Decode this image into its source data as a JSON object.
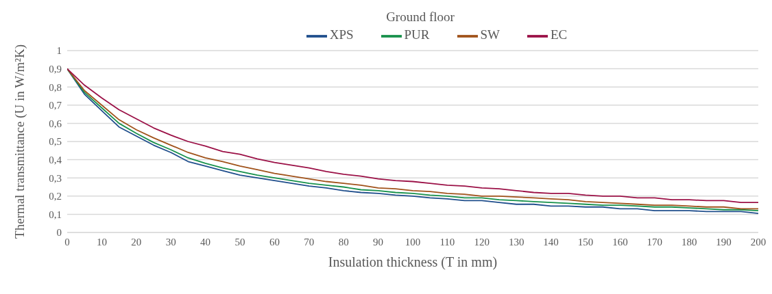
{
  "chart_data": {
    "type": "line",
    "title": "Ground floor",
    "xlabel": "Insulation thickness (T in mm)",
    "ylabel": "Thermal transmittance (U in W/m²K)",
    "x": [
      0,
      5,
      10,
      15,
      20,
      25,
      30,
      35,
      40,
      45,
      50,
      55,
      60,
      65,
      70,
      75,
      80,
      85,
      90,
      95,
      100,
      105,
      110,
      115,
      120,
      125,
      130,
      135,
      140,
      145,
      150,
      155,
      160,
      165,
      170,
      175,
      180,
      185,
      190,
      195,
      200
    ],
    "series": [
      {
        "name": "XPS",
        "color": "#1f4e8c",
        "values": [
          0.9,
          0.76,
          0.67,
          0.58,
          0.53,
          0.48,
          0.44,
          0.39,
          0.365,
          0.34,
          0.315,
          0.3,
          0.285,
          0.27,
          0.255,
          0.245,
          0.23,
          0.22,
          0.215,
          0.205,
          0.2,
          0.19,
          0.185,
          0.175,
          0.175,
          0.165,
          0.155,
          0.155,
          0.145,
          0.145,
          0.14,
          0.14,
          0.13,
          0.13,
          0.12,
          0.12,
          0.12,
          0.115,
          0.115,
          0.115,
          0.105
        ]
      },
      {
        "name": "PUR",
        "color": "#17914b",
        "values": [
          0.9,
          0.77,
          0.685,
          0.6,
          0.545,
          0.495,
          0.455,
          0.41,
          0.38,
          0.355,
          0.335,
          0.315,
          0.3,
          0.285,
          0.27,
          0.26,
          0.25,
          0.235,
          0.23,
          0.22,
          0.215,
          0.205,
          0.2,
          0.19,
          0.19,
          0.18,
          0.175,
          0.17,
          0.165,
          0.16,
          0.155,
          0.15,
          0.15,
          0.145,
          0.14,
          0.14,
          0.135,
          0.13,
          0.125,
          0.125,
          0.12
        ]
      },
      {
        "name": "SW",
        "color": "#a0521a",
        "values": [
          0.9,
          0.78,
          0.7,
          0.62,
          0.565,
          0.52,
          0.48,
          0.44,
          0.41,
          0.39,
          0.365,
          0.345,
          0.325,
          0.31,
          0.295,
          0.28,
          0.27,
          0.26,
          0.245,
          0.24,
          0.23,
          0.225,
          0.215,
          0.21,
          0.2,
          0.2,
          0.195,
          0.19,
          0.185,
          0.18,
          0.17,
          0.165,
          0.16,
          0.155,
          0.15,
          0.15,
          0.145,
          0.14,
          0.14,
          0.13,
          0.13
        ]
      },
      {
        "name": "EC",
        "color": "#9b1046",
        "values": [
          0.9,
          0.81,
          0.74,
          0.675,
          0.625,
          0.575,
          0.535,
          0.5,
          0.475,
          0.445,
          0.43,
          0.405,
          0.385,
          0.37,
          0.355,
          0.335,
          0.32,
          0.31,
          0.295,
          0.285,
          0.28,
          0.27,
          0.26,
          0.255,
          0.245,
          0.24,
          0.23,
          0.22,
          0.215,
          0.215,
          0.205,
          0.2,
          0.2,
          0.19,
          0.19,
          0.18,
          0.18,
          0.175,
          0.175,
          0.165,
          0.165
        ]
      }
    ],
    "xlim": [
      0,
      200
    ],
    "xticks": [
      0,
      10,
      20,
      30,
      40,
      50,
      60,
      70,
      80,
      90,
      100,
      110,
      120,
      130,
      140,
      150,
      160,
      170,
      180,
      190,
      200
    ],
    "ylim": [
      0,
      1
    ],
    "yticks": [
      0,
      {
        "value": 0.1,
        "label": "0,1"
      },
      {
        "value": 0.2,
        "label": "0,2"
      },
      {
        "value": 0.3,
        "label": "0,3"
      },
      {
        "value": 0.4,
        "label": "0,4"
      },
      {
        "value": 0.5,
        "label": "0,5"
      },
      {
        "value": 0.6,
        "label": "0,6"
      },
      {
        "value": 0.7,
        "label": "0,7"
      },
      {
        "value": 0.8,
        "label": "0,8"
      },
      {
        "value": 0.9,
        "label": "0,9"
      },
      1
    ],
    "grid": "y",
    "legend": "top",
    "marker": "none",
    "line_style": "solid"
  }
}
